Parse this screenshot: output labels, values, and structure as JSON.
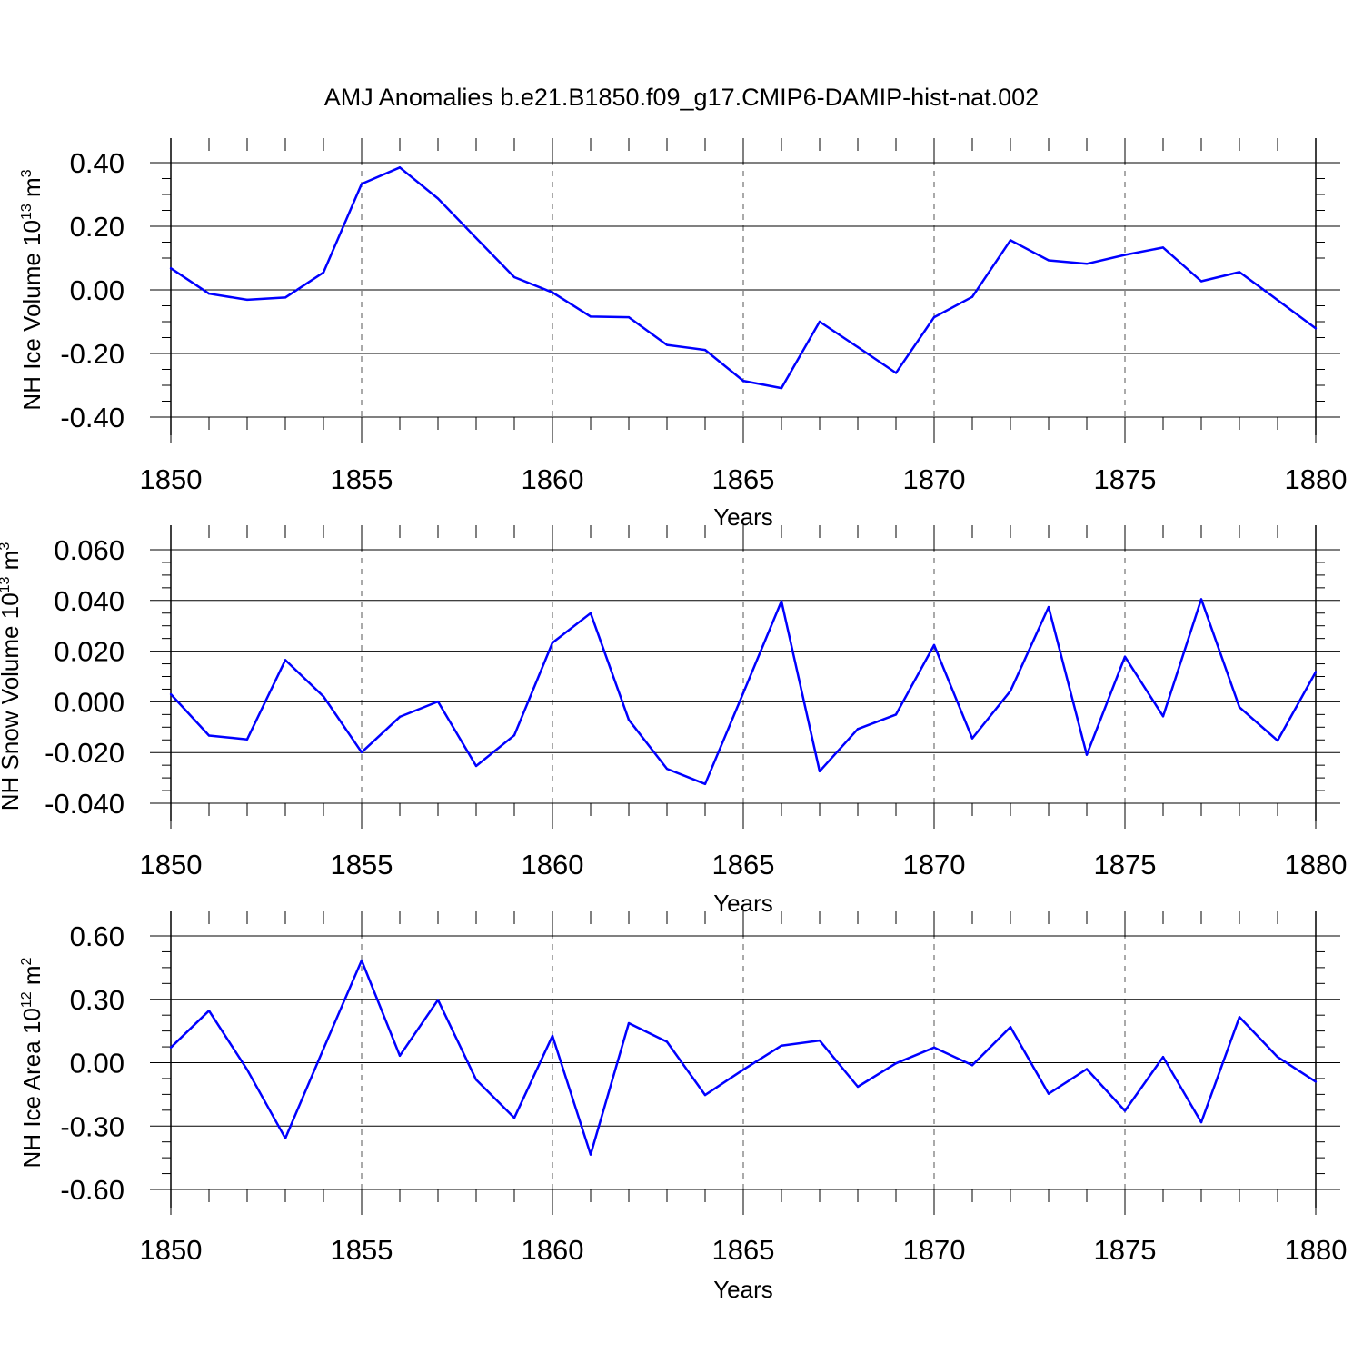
{
  "figure": {
    "title": "AMJ Anomalies b.e21.B1850.f09_g17.CMIP6-DAMIP-hist-nat.002"
  },
  "chart_data": [
    {
      "type": "line",
      "xlabel": "Years",
      "ylabel": {
        "base": "NH Ice Volume 10",
        "exp": "13",
        "unit": " m",
        "unit_exp": "3"
      },
      "xlim": [
        1850,
        1880
      ],
      "ylim": [
        -0.4,
        0.4
      ],
      "x_ticks": [
        1850,
        1855,
        1860,
        1865,
        1870,
        1875,
        1880
      ],
      "y_ticks": [
        -0.4,
        -0.2,
        0.0,
        0.2,
        0.4
      ],
      "y_tick_labels": [
        "-0.40",
        "-0.20",
        "0.00",
        "0.20",
        "0.40"
      ],
      "line_color": "#0000ff",
      "x": [
        1850,
        1851,
        1852,
        1853,
        1854,
        1855,
        1856,
        1857,
        1858,
        1859,
        1860,
        1861,
        1862,
        1863,
        1864,
        1865,
        1866,
        1867,
        1868,
        1869,
        1870,
        1871,
        1872,
        1873,
        1874,
        1875,
        1876,
        1877,
        1878,
        1879,
        1880
      ],
      "values": [
        0.068,
        -0.012,
        -0.031,
        -0.024,
        0.055,
        0.333,
        0.385,
        0.287,
        0.163,
        0.04,
        -0.008,
        -0.084,
        -0.086,
        -0.173,
        -0.189,
        -0.286,
        -0.309,
        -0.1,
        -0.18,
        -0.261,
        -0.086,
        -0.022,
        0.156,
        0.093,
        0.082,
        0.11,
        0.133,
        0.027,
        0.056,
        -0.032,
        -0.121
      ]
    },
    {
      "type": "line",
      "xlabel": "Years",
      "ylabel": {
        "base": "NH Snow Volume 10",
        "exp": "13",
        "unit": " m",
        "unit_exp": "3"
      },
      "xlim": [
        1850,
        1880
      ],
      "ylim": [
        -0.04,
        0.06
      ],
      "x_ticks": [
        1850,
        1855,
        1860,
        1865,
        1870,
        1875,
        1880
      ],
      "y_ticks": [
        -0.04,
        -0.02,
        0.0,
        0.02,
        0.04,
        0.06
      ],
      "y_tick_labels": [
        "-0.040",
        "-0.020",
        "0.000",
        "0.020",
        "0.040",
        "0.060"
      ],
      "line_color": "#0000ff",
      "x": [
        1850,
        1851,
        1852,
        1853,
        1854,
        1855,
        1856,
        1857,
        1858,
        1859,
        1860,
        1861,
        1862,
        1863,
        1864,
        1865,
        1866,
        1867,
        1868,
        1869,
        1870,
        1871,
        1872,
        1873,
        1874,
        1875,
        1876,
        1877,
        1878,
        1879,
        1880
      ],
      "values": [
        0.003,
        -0.0133,
        -0.0148,
        0.0165,
        0.0021,
        -0.0199,
        -0.0059,
        0.0001,
        -0.0253,
        -0.0132,
        0.0233,
        0.035,
        -0.0071,
        -0.0264,
        -0.0324,
        0.0035,
        0.0397,
        -0.0274,
        -0.0107,
        -0.005,
        0.0224,
        -0.0144,
        0.0043,
        0.0374,
        -0.0209,
        0.0178,
        -0.0057,
        0.0405,
        -0.0021,
        -0.0153,
        0.0118
      ]
    },
    {
      "type": "line",
      "xlabel": "Years",
      "ylabel": {
        "base": "NH Ice Area 10",
        "exp": "12",
        "unit": " m",
        "unit_exp": "2"
      },
      "xlim": [
        1850,
        1880
      ],
      "ylim": [
        -0.6,
        0.6
      ],
      "x_ticks": [
        1850,
        1855,
        1860,
        1865,
        1870,
        1875,
        1880
      ],
      "y_ticks": [
        -0.6,
        -0.3,
        0.0,
        0.3,
        0.6
      ],
      "y_tick_labels": [
        "-0.60",
        "-0.30",
        "0.00",
        "0.30",
        "0.60"
      ],
      "line_color": "#0000ff",
      "x": [
        1850,
        1851,
        1852,
        1853,
        1854,
        1855,
        1856,
        1857,
        1858,
        1859,
        1860,
        1861,
        1862,
        1863,
        1864,
        1865,
        1866,
        1867,
        1868,
        1869,
        1870,
        1871,
        1872,
        1873,
        1874,
        1875,
        1876,
        1877,
        1878,
        1879,
        1880
      ],
      "values": [
        0.072,
        0.246,
        -0.033,
        -0.358,
        0.066,
        0.484,
        0.033,
        0.297,
        -0.081,
        -0.261,
        0.127,
        -0.435,
        0.187,
        0.099,
        -0.153,
        -0.033,
        0.081,
        0.105,
        -0.114,
        -0.003,
        0.072,
        -0.012,
        0.169,
        -0.147,
        -0.03,
        -0.228,
        0.027,
        -0.282,
        0.216,
        0.027,
        -0.09
      ]
    }
  ]
}
